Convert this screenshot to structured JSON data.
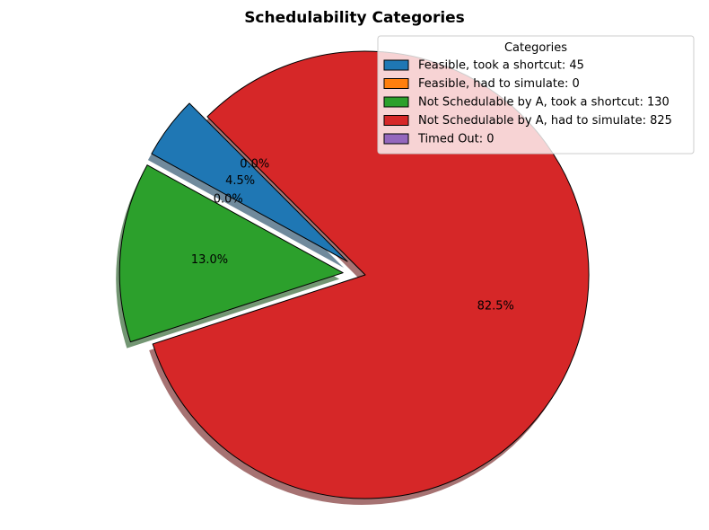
{
  "chart_data": {
    "type": "pie",
    "title": "Schedulability Categories",
    "start_angle_deg": 135,
    "legend": {
      "title": "Categories",
      "placement": "top-right"
    },
    "slices": [
      {
        "legend_label": "Feasible, took a shortcut: 45",
        "value": 45,
        "pct_label": "4.5%",
        "color": "#1f77b4",
        "explode": 0.1
      },
      {
        "legend_label": "Feasible, had to simulate: 0",
        "value": 0,
        "pct_label": "0.0%",
        "color": "#ff7f0e",
        "explode": 0.1
      },
      {
        "legend_label": "Not Schedulable by A, took a shortcut: 130",
        "value": 130,
        "pct_label": "13.0%",
        "color": "#2ca02c",
        "explode": 0.1
      },
      {
        "legend_label": "Not Schedulable by A, had to simulate: 825",
        "value": 825,
        "pct_label": "82.5%",
        "color": "#d62728",
        "explode": 0
      },
      {
        "legend_label": "Timed Out: 0",
        "value": 0,
        "pct_label": "0.0%",
        "color": "#9467bd",
        "explode": 0.1
      }
    ]
  }
}
